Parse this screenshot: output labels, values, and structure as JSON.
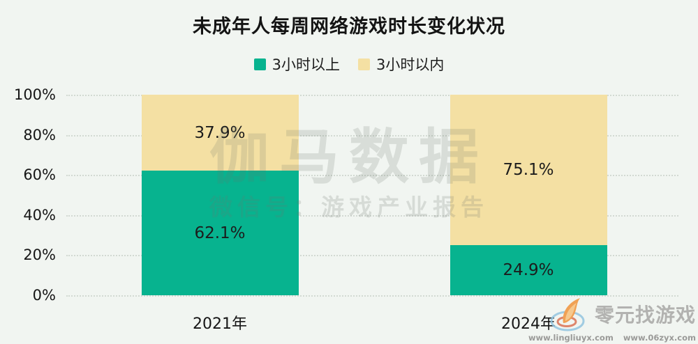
{
  "title": "未成年人每周网络游戏时长变化状况",
  "colors": {
    "background": "#f1f5f1",
    "green": "#07b38f",
    "yellow": "#f4e0a3",
    "text": "#161616",
    "watermark_gray": "#6c746c",
    "logo_gray": "#b2b2b0"
  },
  "legend": [
    {
      "label": "3小时以上",
      "color": "#07b38f"
    },
    {
      "label": "3小时以内",
      "color": "#f4e0a3"
    }
  ],
  "chart_data": {
    "type": "bar",
    "stacked": true,
    "title": "未成年人每周网络游戏时长变化状况",
    "categories": [
      "2021年",
      "2024年"
    ],
    "series": [
      {
        "name": "3小时以上",
        "color": "#07b38f",
        "values": [
          62.1,
          24.9
        ],
        "labels": [
          "62.1%",
          "24.9%"
        ]
      },
      {
        "name": "3小时以内",
        "color": "#f4e0a3",
        "values": [
          37.9,
          75.1
        ],
        "labels": [
          "37.9%",
          "75.1%"
        ]
      }
    ],
    "xlabel": "",
    "ylabel": "",
    "ylim": [
      0,
      100
    ],
    "y_ticks": [
      {
        "value": 0,
        "label": "0%"
      },
      {
        "value": 20,
        "label": "20%"
      },
      {
        "value": 40,
        "label": "40%"
      },
      {
        "value": 60,
        "label": "60%"
      },
      {
        "value": 80,
        "label": "80%"
      },
      {
        "value": 100,
        "label": "100%"
      }
    ],
    "grid": true,
    "legend_position": "top"
  },
  "watermark": {
    "line1": "伽马数据",
    "line2": "微信号：游戏产业报告"
  },
  "footer_logo": {
    "name": "零元找游戏",
    "urls": [
      "www.lingliuyx.com",
      "www.06zyx.com"
    ]
  }
}
